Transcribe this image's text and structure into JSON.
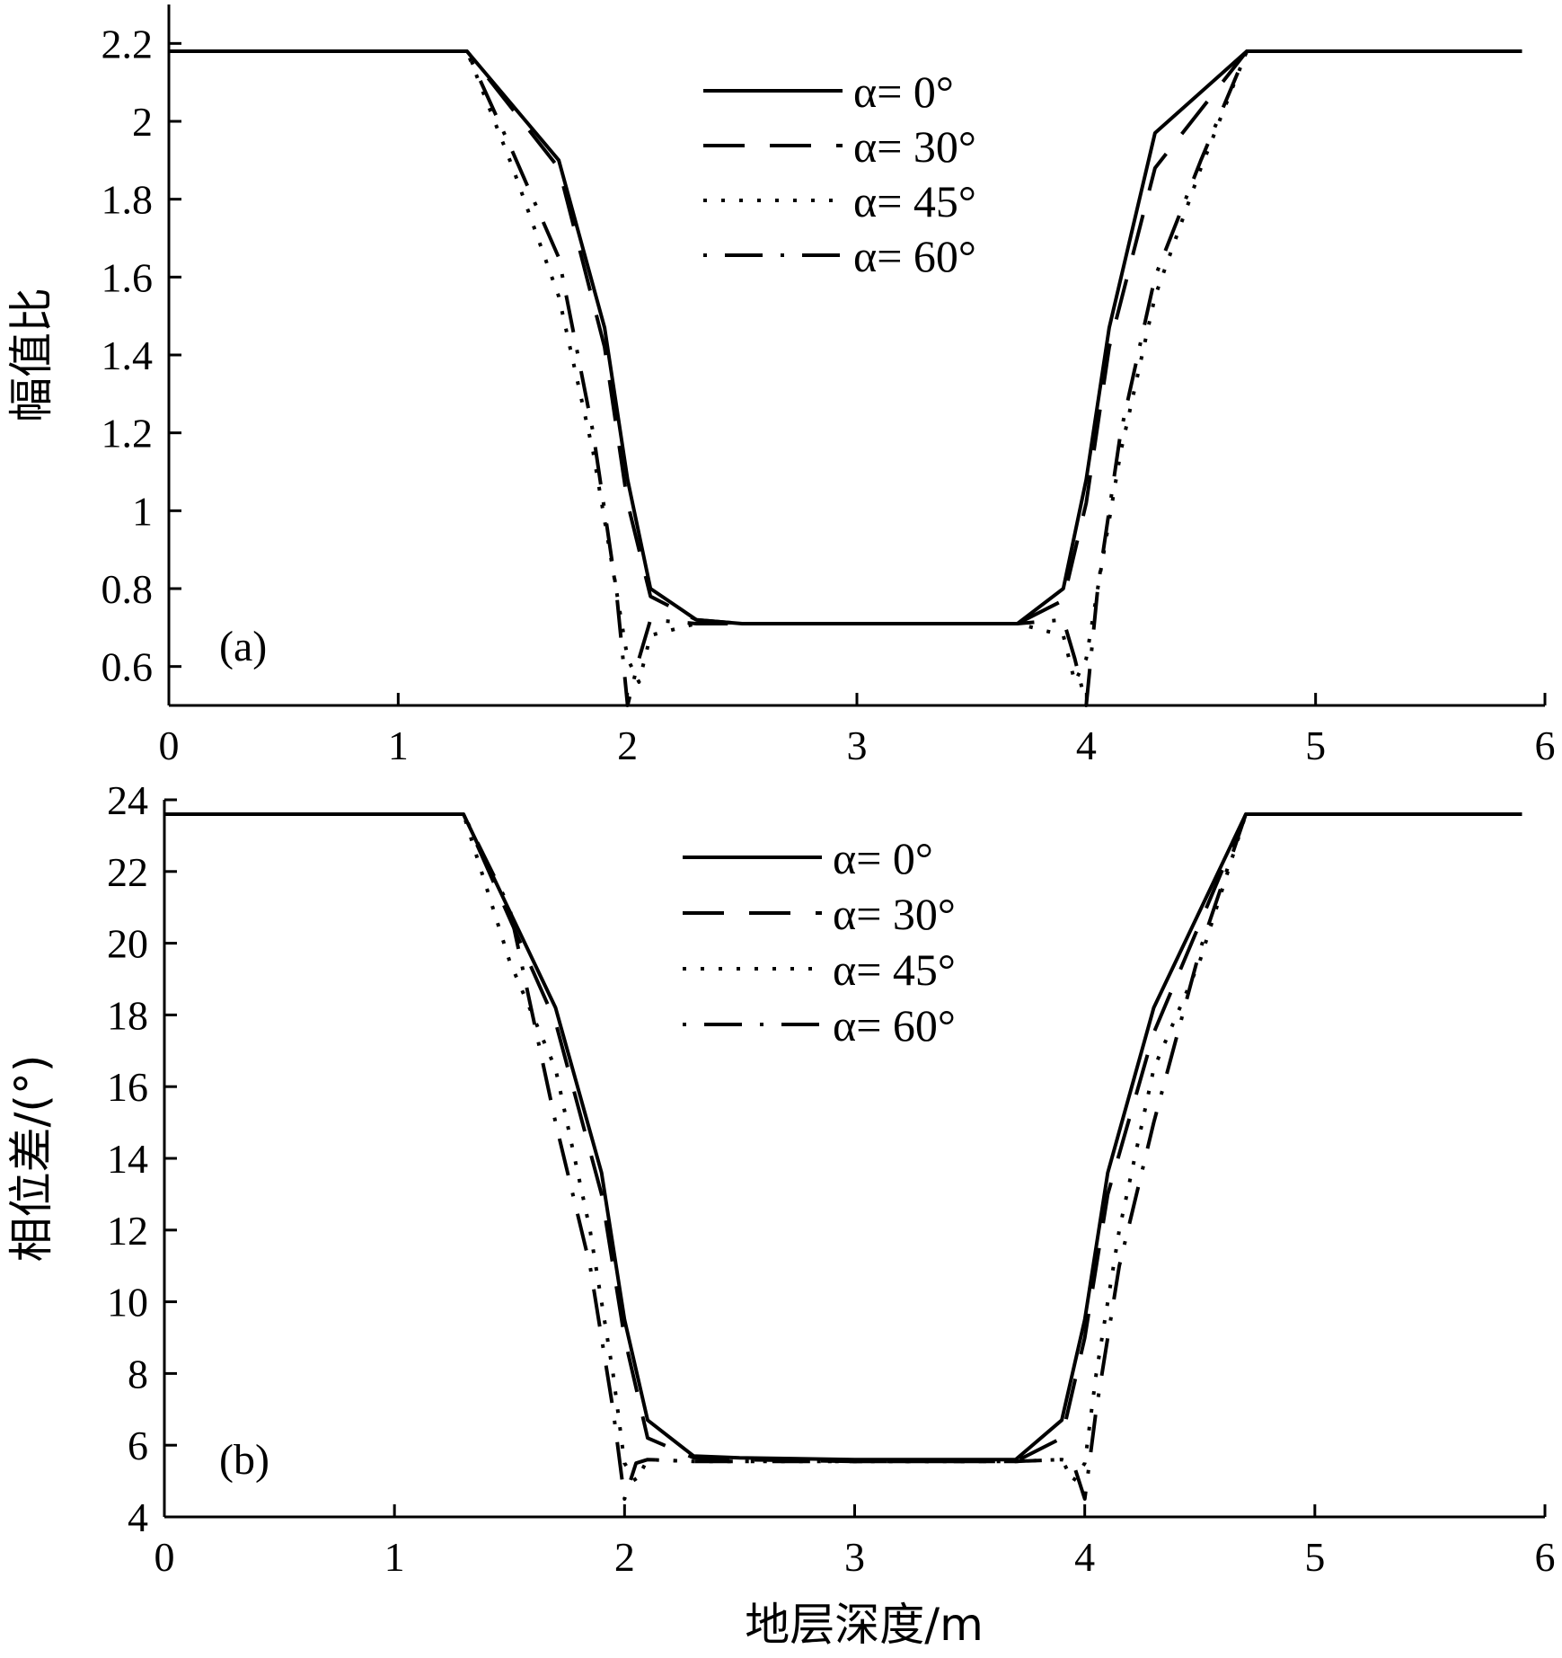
{
  "chart_data": [
    {
      "type": "line",
      "panel_label": "(a)",
      "xlabel": "",
      "ylabel": "幅值比",
      "xlim": [
        0,
        6
      ],
      "ylim": [
        0.5,
        2.3
      ],
      "xticks": [
        0,
        1,
        2,
        3,
        4,
        5,
        6
      ],
      "yticks": [
        0.6,
        0.8,
        1,
        1.2,
        1.4,
        1.6,
        1.8,
        2,
        2.2
      ],
      "grid": false,
      "legend_position": "top-center",
      "series": [
        {
          "name": "α= 0°",
          "style": "solid",
          "x": [
            0,
            1.3,
            1.7,
            1.9,
            2.0,
            2.1,
            2.3,
            2.5,
            3.0,
            3.5,
            3.7,
            3.9,
            4.0,
            4.1,
            4.3,
            4.7,
            5.9
          ],
          "y": [
            2.18,
            2.18,
            1.9,
            1.47,
            1.08,
            0.8,
            0.72,
            0.71,
            0.71,
            0.71,
            0.71,
            0.8,
            1.08,
            1.47,
            1.97,
            2.18,
            2.18
          ]
        },
        {
          "name": "α= 30°",
          "style": "dashed",
          "x": [
            0,
            1.3,
            1.7,
            1.9,
            2.0,
            2.1,
            2.3,
            2.5,
            3.0,
            3.5,
            3.7,
            3.9,
            4.0,
            4.1,
            4.3,
            4.7,
            5.9
          ],
          "y": [
            2.18,
            2.18,
            1.88,
            1.42,
            1.02,
            0.78,
            0.72,
            0.71,
            0.71,
            0.71,
            0.71,
            0.77,
            1.02,
            1.42,
            1.88,
            2.18,
            2.18
          ]
        },
        {
          "name": "α= 45°",
          "style": "dotted",
          "x": [
            0,
            1.3,
            1.5,
            1.7,
            1.85,
            1.95,
            2.0,
            2.05,
            2.1,
            2.3,
            2.5,
            3.0,
            3.5,
            3.7,
            3.9,
            3.95,
            4.0,
            4.05,
            4.15,
            4.3,
            4.5,
            4.7,
            5.9
          ],
          "y": [
            2.18,
            2.18,
            1.88,
            1.55,
            1.15,
            0.8,
            0.62,
            0.56,
            0.68,
            0.71,
            0.71,
            0.71,
            0.71,
            0.71,
            0.68,
            0.56,
            0.62,
            0.8,
            1.15,
            1.55,
            1.88,
            2.18,
            2.18
          ]
        },
        {
          "name": "α= 60°",
          "style": "dashdot",
          "x": [
            0,
            1.3,
            1.5,
            1.7,
            1.85,
            1.95,
            2.0,
            2.05,
            2.1,
            2.3,
            2.5,
            3.0,
            3.5,
            3.7,
            3.9,
            3.95,
            4.0,
            4.05,
            4.15,
            4.3,
            4.5,
            4.7,
            5.9
          ],
          "y": [
            2.18,
            2.18,
            1.92,
            1.65,
            1.2,
            0.8,
            0.5,
            0.62,
            0.72,
            0.71,
            0.71,
            0.71,
            0.71,
            0.71,
            0.72,
            0.62,
            0.5,
            0.8,
            1.2,
            1.6,
            1.9,
            2.18,
            2.18
          ]
        }
      ]
    },
    {
      "type": "line",
      "panel_label": "(b)",
      "xlabel": "地层深度/m",
      "ylabel": "相位差/(°)",
      "xlim": [
        0,
        6
      ],
      "ylim": [
        4,
        24
      ],
      "xticks": [
        0,
        1,
        2,
        3,
        4,
        5,
        6
      ],
      "yticks": [
        4,
        6,
        8,
        10,
        12,
        14,
        16,
        18,
        20,
        22,
        24
      ],
      "grid": false,
      "legend_position": "top-center",
      "series": [
        {
          "name": "α= 0°",
          "style": "solid",
          "x": [
            0,
            1.3,
            1.7,
            1.9,
            2.0,
            2.1,
            2.3,
            2.5,
            3.0,
            3.5,
            3.7,
            3.9,
            4.0,
            4.1,
            4.3,
            4.7,
            5.9
          ],
          "y": [
            23.6,
            23.6,
            18.2,
            13.6,
            9.5,
            6.7,
            5.7,
            5.65,
            5.6,
            5.6,
            5.6,
            6.7,
            9.5,
            13.6,
            18.2,
            23.6,
            23.6
          ]
        },
        {
          "name": "α= 30°",
          "style": "dashed",
          "x": [
            0,
            1.3,
            1.7,
            1.9,
            2.0,
            2.1,
            2.3,
            2.5,
            3.0,
            3.5,
            3.7,
            3.9,
            4.0,
            4.1,
            4.3,
            4.7,
            5.9
          ],
          "y": [
            23.6,
            23.6,
            17.8,
            13.0,
            9.0,
            6.2,
            5.65,
            5.6,
            5.55,
            5.55,
            5.55,
            6.2,
            9.0,
            13.0,
            17.5,
            23.6,
            23.6
          ]
        },
        {
          "name": "α= 45°",
          "style": "dotted",
          "x": [
            0,
            1.3,
            1.5,
            1.7,
            1.85,
            1.95,
            2.0,
            2.05,
            2.1,
            2.3,
            2.5,
            3.0,
            3.5,
            3.7,
            3.9,
            3.95,
            4.0,
            4.05,
            4.15,
            4.3,
            4.5,
            4.7,
            5.9
          ],
          "y": [
            23.6,
            23.6,
            19.5,
            16.5,
            12.0,
            8.0,
            5.5,
            5.0,
            5.6,
            5.55,
            5.55,
            5.55,
            5.55,
            5.55,
            5.6,
            5.0,
            5.5,
            8.0,
            12.0,
            16.5,
            19.5,
            23.6,
            23.6
          ]
        },
        {
          "name": "α= 60°",
          "style": "dashdot",
          "x": [
            0,
            1.3,
            1.5,
            1.7,
            1.85,
            1.95,
            2.0,
            2.05,
            2.1,
            2.3,
            2.5,
            3.0,
            3.5,
            3.7,
            3.9,
            3.95,
            4.0,
            4.05,
            4.15,
            4.3,
            4.5,
            4.7,
            5.9
          ],
          "y": [
            23.6,
            23.6,
            21.0,
            15.0,
            11.0,
            7.0,
            4.5,
            5.5,
            5.6,
            5.55,
            5.55,
            5.55,
            5.55,
            5.55,
            5.6,
            5.5,
            4.5,
            7.0,
            11.0,
            15.0,
            19.8,
            23.6,
            23.6
          ]
        }
      ]
    }
  ]
}
